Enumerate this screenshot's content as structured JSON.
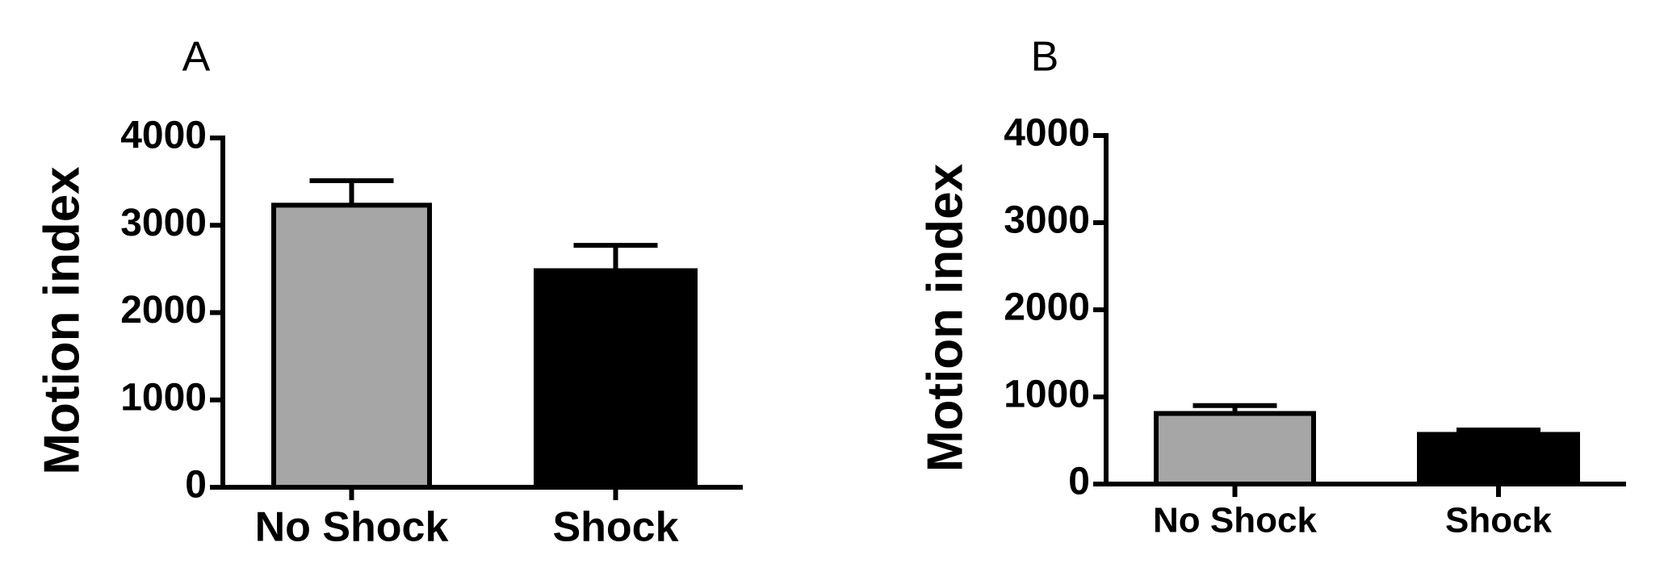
{
  "chart_data": [
    {
      "type": "bar",
      "title": "A",
      "y_label": "Motion index",
      "categories": [
        "No Shock",
        "Shock"
      ],
      "series": [
        {
          "values": [
            3230,
            2480
          ],
          "errors": [
            280,
            290
          ],
          "colors": [
            "#a6a6a6",
            "#000000"
          ]
        }
      ],
      "ylim": [
        0,
        4000
      ],
      "yticks": [
        0,
        1000,
        2000,
        3000,
        4000
      ]
    },
    {
      "type": "bar",
      "title": "B",
      "y_label": "Motion index",
      "categories": [
        "No Shock",
        "Shock"
      ],
      "series": [
        {
          "values": [
            810,
            570
          ],
          "errors": [
            90,
            50
          ],
          "colors": [
            "#a6a6a6",
            "#000000"
          ]
        }
      ],
      "ylim": [
        0,
        4000
      ],
      "yticks": [
        0,
        1000,
        2000,
        3000,
        4000
      ]
    }
  ]
}
